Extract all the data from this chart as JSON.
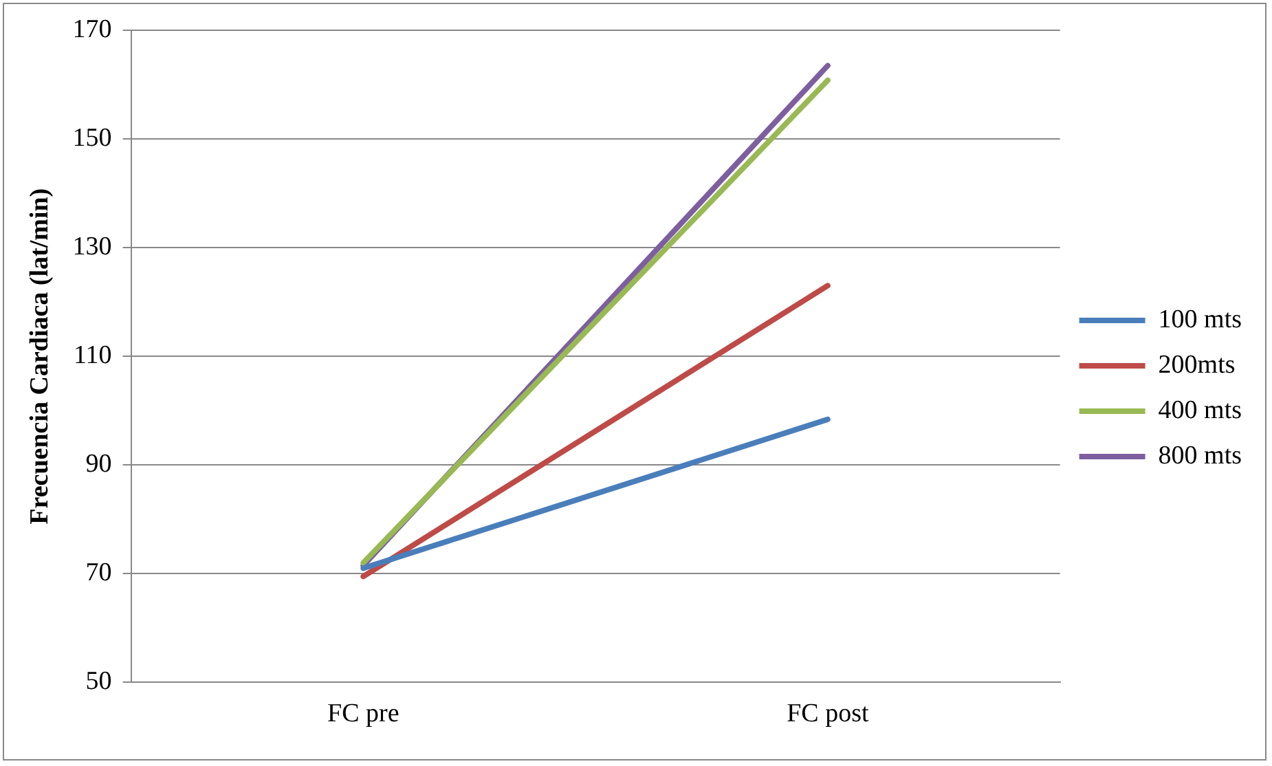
{
  "chart_data": {
    "type": "line",
    "ylabel": "Frecuencia Cardiaca (lat/min)",
    "categories": [
      "FC pre",
      "FC post"
    ],
    "series": [
      {
        "name": "100 mts",
        "color": "#4a7ebb",
        "values": [
          71,
          98.4
        ]
      },
      {
        "name": "200mts",
        "color": "#be4b48",
        "values": [
          69.5,
          123
        ]
      },
      {
        "name": "400 mts",
        "color": "#98b954",
        "values": [
          72,
          160.8
        ]
      },
      {
        "name": "800 mts",
        "color": "#7d5fa0",
        "values": [
          71.5,
          163.5
        ]
      }
    ],
    "ylim": [
      50,
      170
    ],
    "yticks": [
      50,
      70,
      90,
      110,
      130,
      150,
      170
    ],
    "grid": "y",
    "legend": "right",
    "marker": "none",
    "line_style": "solid"
  }
}
